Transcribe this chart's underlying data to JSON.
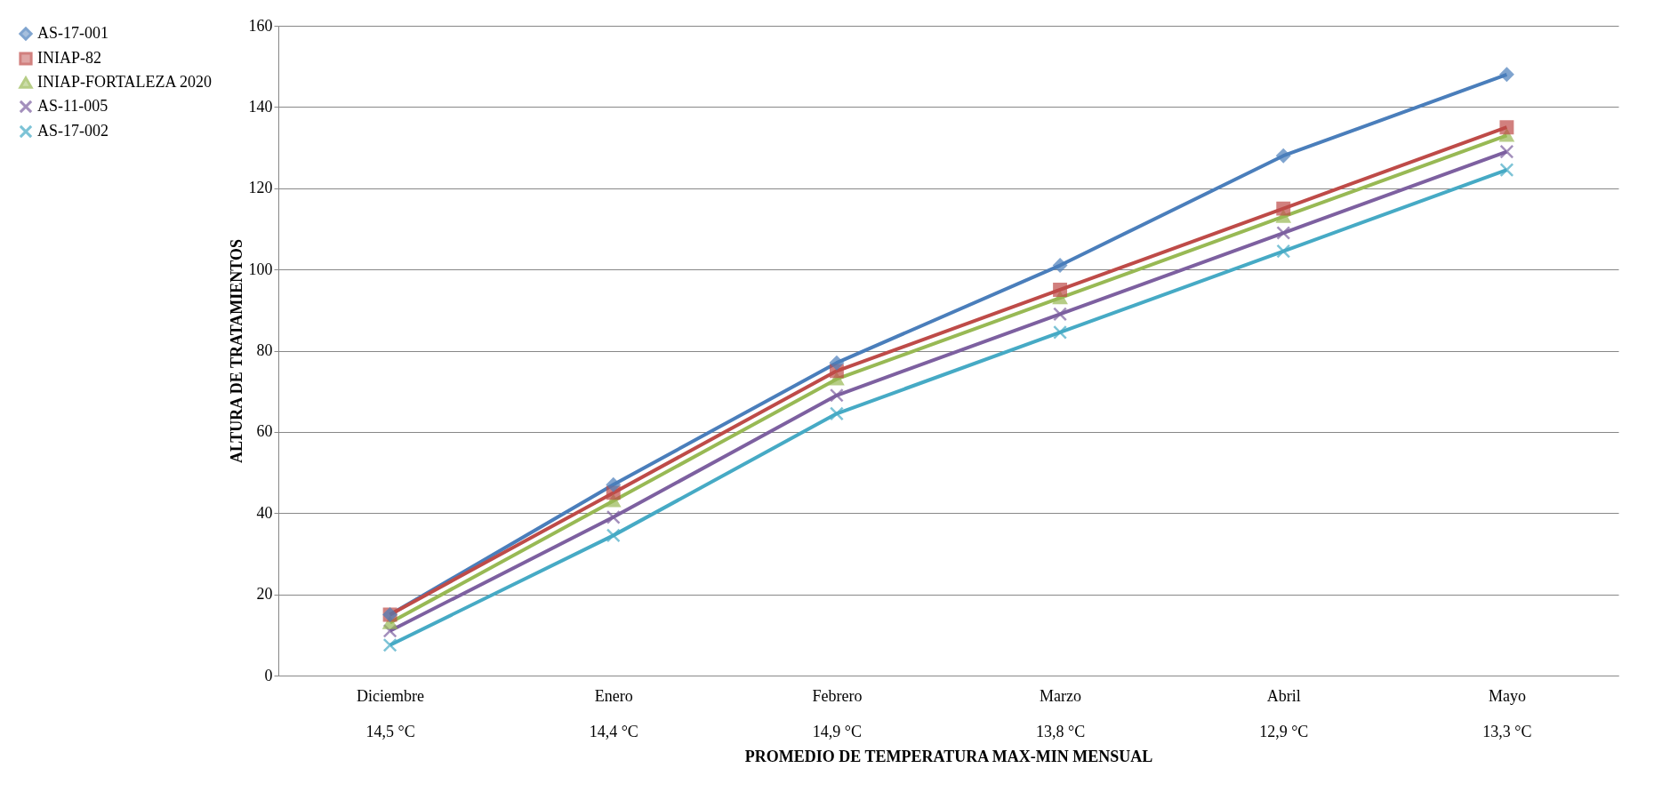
{
  "chart_data": {
    "type": "line",
    "xlabel": "PROMEDIO DE TEMPERATURA MAX-MIN MENSUAL",
    "ylabel": "ALTURA DE TRATAMIENTOS",
    "categories": [
      "Diciembre\n14,5 °C",
      "Enero\n14,4 °C",
      "Febrero\n14,9 °C",
      "Marzo\n13,8 °C",
      "Abril\n12,9 °C",
      "Mayo\n13,3 °C"
    ],
    "series": [
      {
        "name": "AS-17-001",
        "color": "#4a7ebb",
        "marker": "diamond",
        "values": [
          15,
          47,
          77,
          101,
          128,
          148
        ]
      },
      {
        "name": "INIAP-82",
        "color": "#be4b48",
        "marker": "square",
        "values": [
          15,
          45,
          75,
          95,
          115,
          135
        ]
      },
      {
        "name": "INIAP-FORTALEZA 2020",
        "color": "#98b954",
        "marker": "triangle",
        "values": [
          13,
          43,
          73,
          93,
          113,
          133
        ]
      },
      {
        "name": "AS-11-005",
        "color": "#7d60a0",
        "marker": "cross",
        "values": [
          11,
          39,
          69,
          89,
          109,
          129
        ]
      },
      {
        "name": "AS-17-002",
        "color": "#46aac5",
        "marker": "cross",
        "values": [
          7.5,
          34.5,
          64.5,
          84.5,
          104.5,
          124.5
        ]
      }
    ],
    "ylim": [
      0,
      160
    ],
    "yticks": [
      0,
      20,
      40,
      60,
      80,
      100,
      120,
      140,
      160
    ],
    "grid": "y",
    "legend": "left",
    "line_style": "solid"
  }
}
